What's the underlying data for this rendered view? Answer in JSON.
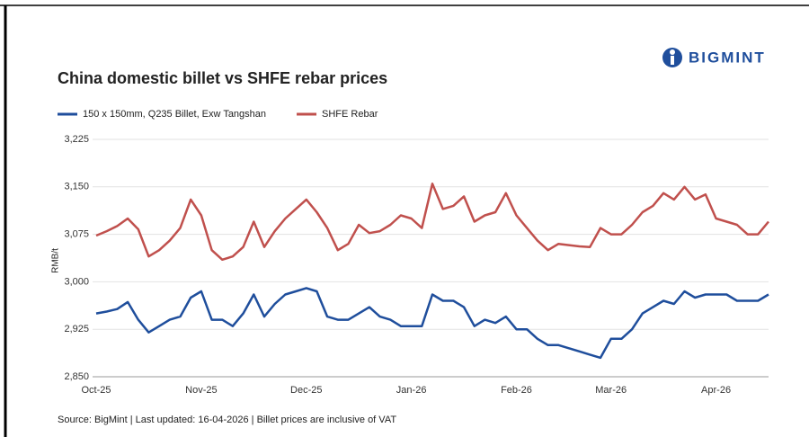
{
  "brand": "BIGMINT",
  "chart_data": {
    "type": "line",
    "title": "China domestic billet vs SHFE rebar prices",
    "ylabel": "RMB/t",
    "source": "Source: BigMint | Last updated: 16-04-2026 | Billet prices are inclusive of VAT",
    "categories": [
      "Oct-25",
      null,
      null,
      null,
      null,
      null,
      null,
      null,
      null,
      null,
      "Nov-25",
      null,
      null,
      null,
      null,
      null,
      null,
      null,
      null,
      null,
      "Dec-25",
      null,
      null,
      null,
      null,
      null,
      null,
      null,
      null,
      null,
      "Jan-26",
      null,
      null,
      null,
      null,
      null,
      null,
      null,
      null,
      null,
      "Feb-26",
      null,
      null,
      null,
      null,
      null,
      null,
      null,
      null,
      "Mar-26",
      null,
      null,
      null,
      null,
      null,
      null,
      null,
      null,
      null,
      "Apr-26",
      null,
      null,
      null,
      null,
      null
    ],
    "series": [
      {
        "name": "150 x 150mm, Q235 Billet, Exw Tangshan",
        "color": "#1f4e9c",
        "values": [
          2950,
          2953,
          2957,
          2968,
          2940,
          2920,
          2930,
          2940,
          2945,
          2975,
          2985,
          2940,
          2940,
          2930,
          2950,
          2980,
          2945,
          2965,
          2980,
          2985,
          2990,
          2985,
          2945,
          2940,
          2940,
          2950,
          2960,
          2945,
          2940,
          2930,
          2930,
          2930,
          2980,
          2970,
          2970,
          2960,
          2930,
          2940,
          2935,
          2945,
          2925,
          2925,
          2910,
          2900,
          2900,
          2895,
          2890,
          2885,
          2880,
          2910,
          2910,
          2925,
          2950,
          2960,
          2970,
          2965,
          2985,
          2975,
          2980,
          2980,
          2980,
          2970,
          2970,
          2970,
          2980
        ]
      },
      {
        "name": "SHFE Rebar",
        "color": "#c0504d",
        "values": [
          3073,
          3080,
          3088,
          3100,
          3083,
          3040,
          3050,
          3065,
          3085,
          3130,
          3105,
          3050,
          3035,
          3040,
          3055,
          3095,
          3055,
          3080,
          3100,
          3115,
          3130,
          3110,
          3085,
          3050,
          3060,
          3090,
          3077,
          3080,
          3090,
          3105,
          3100,
          3085,
          3155,
          3115,
          3120,
          3135,
          3095,
          3105,
          3110,
          3140,
          3105,
          3085,
          3065,
          3050,
          3060,
          3058,
          3056,
          3055,
          3085,
          3075,
          3075,
          3090,
          3110,
          3120,
          3140,
          3130,
          3150,
          3130,
          3138,
          3100,
          3095,
          3090,
          3075,
          3075,
          3095
        ]
      }
    ],
    "ylim": [
      2850,
      3225
    ],
    "yticks": [
      {
        "value": 2850,
        "label": "2,850"
      },
      {
        "value": 2925,
        "label": "2,925"
      },
      {
        "value": 3000,
        "label": "3,000"
      },
      {
        "value": 3075,
        "label": "3,075"
      },
      {
        "value": 3150,
        "label": "3,150"
      },
      {
        "value": 3225,
        "label": "3,225"
      }
    ],
    "grid": true
  }
}
